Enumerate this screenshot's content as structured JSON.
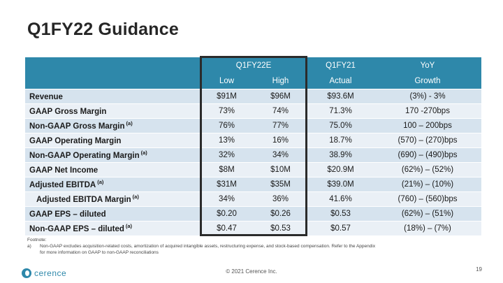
{
  "title": "Q1FY22 Guidance",
  "table": {
    "header1": [
      "",
      "Q1FY22E",
      "Q1FY21",
      "YoY"
    ],
    "header2": [
      "",
      "Low",
      "High",
      "Actual",
      "Growth"
    ],
    "rows": [
      {
        "label": "Revenue",
        "sup": "",
        "cells": [
          "$91M",
          "$96M",
          "$93.6M",
          "(3%) - 3%"
        ]
      },
      {
        "label": "GAAP Gross Margin",
        "sup": "",
        "cells": [
          "73%",
          "74%",
          "71.3%",
          "170 -270bps"
        ]
      },
      {
        "label": "Non-GAAP Gross Margin",
        "sup": "(a)",
        "cells": [
          "76%",
          "77%",
          "75.0%",
          "100 – 200bps"
        ]
      },
      {
        "label": "GAAP Operating Margin",
        "sup": "",
        "cells": [
          "13%",
          "16%",
          "18.7%",
          "(570) – (270)bps"
        ]
      },
      {
        "label": "Non-GAAP Operating Margin",
        "sup": "(a)",
        "cells": [
          "32%",
          "34%",
          "38.9%",
          "(690) – (490)bps"
        ]
      },
      {
        "label": "GAAP Net Income",
        "sup": "",
        "cells": [
          "$8M",
          "$10M",
          "$20.9M",
          "(62%) – (52%)"
        ]
      },
      {
        "label": "Adjusted EBITDA",
        "sup": "(a)",
        "cells": [
          "$31M",
          "$35M",
          "$39.0M",
          "(21%) – (10%)"
        ]
      },
      {
        "label": "Adjusted EBITDA Margin",
        "sup": "(a)",
        "cells": [
          "34%",
          "36%",
          "41.6%",
          "(760) – (560)bps"
        ]
      },
      {
        "label": "GAAP EPS – diluted",
        "sup": "",
        "cells": [
          "$0.20",
          "$0.26",
          "$0.53",
          "(62%) – (51%)"
        ]
      },
      {
        "label": "Non-GAAP EPS – diluted",
        "sup": "(a)",
        "cells": [
          "$0.47",
          "$0.53",
          "$0.57",
          "(18%) – (7%)"
        ]
      }
    ]
  },
  "footnote": {
    "heading": "Footnote:",
    "marker": "a)",
    "line1": "Non-GAAP excludes acquisition-related costs, amortization of acquired intangible assets, restructuring expense, and stock-based compensation.   Refer to the Appendix",
    "line2": "for more information on GAAP to non-GAAP reconciliations"
  },
  "footer": {
    "logo_text": "cerence",
    "copyright": "© 2021 Cerence Inc.",
    "page": "19"
  },
  "colors": {
    "header_bg": "#2e88aa",
    "row_dark": "#d6e3ee",
    "row_light": "#eaf0f6",
    "highlight_border": "#2b2b2b"
  }
}
